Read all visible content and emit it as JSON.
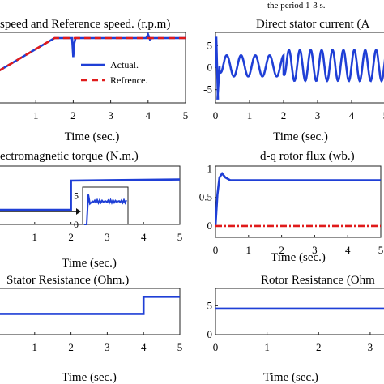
{
  "figure": {
    "top_caption": "the period 1-3 s."
  },
  "chart_data": [
    {
      "id": "speed",
      "type": "line",
      "title": "speed and Reference speed. (r.p.m)",
      "xlabel": "Time (sec.)",
      "xlim": [
        0,
        5
      ],
      "ylim": [
        0,
        1
      ],
      "xticks": [
        "1",
        "2",
        "3",
        "4",
        "5"
      ],
      "yticks": [],
      "legend": {
        "placement": "inside-right",
        "entries": [
          "Actual.",
          "Refrence."
        ]
      },
      "series": [
        {
          "name": "Actual.",
          "color": "#1f3fd6",
          "style": "solid",
          "x": [
            0,
            1.5,
            1.97,
            2.0,
            2.03,
            2.06,
            3.95,
            4.0,
            4.05,
            4.1,
            5
          ],
          "y": [
            0.45,
            0.92,
            0.92,
            0.65,
            0.85,
            0.92,
            0.92,
            0.97,
            0.9,
            0.92,
            0.92
          ]
        },
        {
          "name": "Refrence.",
          "color": "#e01b1b",
          "style": "dashed",
          "x": [
            0,
            1.5,
            5
          ],
          "y": [
            0.45,
            0.92,
            0.92
          ]
        }
      ]
    },
    {
      "id": "current",
      "type": "line",
      "title": "Direct stator current (A",
      "xlabel": "Time (sec.)",
      "xlim": [
        0,
        5
      ],
      "ylim": [
        -8,
        8
      ],
      "xticks": [
        "0",
        "1",
        "2",
        "3",
        "4",
        "5"
      ],
      "yticks": [
        "5",
        "0",
        "-5"
      ],
      "series": [
        {
          "name": "",
          "color": "#1f3fd6",
          "style": "solid",
          "segments": [
            {
              "t0": 0.12,
              "t1": 2.0,
              "amplitude": 2.4,
              "period": 0.42,
              "offset": 0.4
            },
            {
              "t0": 2.0,
              "t1": 5.0,
              "amplitude": 3.5,
              "period": 0.32,
              "offset": 0.5
            }
          ],
          "startup_peak": [
            7,
            -7
          ]
        }
      ]
    },
    {
      "id": "torque",
      "type": "line",
      "title": "ectromagnetic torque (N.m.)",
      "xlabel": "Time (sec.)",
      "xlim": [
        0,
        5
      ],
      "ylim": [
        0,
        1
      ],
      "xticks": [
        "1",
        "2",
        "3",
        "4",
        "5"
      ],
      "yticks": [],
      "series": [
        {
          "name": "",
          "color": "#1f3fd6",
          "style": "solid",
          "x": [
            0,
            2.0,
            2.0,
            5
          ],
          "y": [
            0.25,
            0.25,
            0.75,
            0.77
          ]
        }
      ],
      "inset": {
        "yticks": [
          "5",
          "0"
        ]
      }
    },
    {
      "id": "flux",
      "type": "line",
      "title": "d-q rotor flux (wb.)",
      "xlabel": "Time (sec.)",
      "xlim": [
        0,
        5
      ],
      "ylim": [
        -0.2,
        1.05
      ],
      "xticks": [
        "0",
        "1",
        "2",
        "3",
        "4",
        "5"
      ],
      "yticks": [
        "1",
        "0.5",
        "0"
      ],
      "series": [
        {
          "name": "",
          "color": "#1f3fd6",
          "style": "solid",
          "x": [
            0,
            0.06,
            0.12,
            0.2,
            0.3,
            0.45,
            0.7,
            5
          ],
          "y": [
            0,
            0.55,
            0.85,
            0.92,
            0.85,
            0.8,
            0.8,
            0.8
          ]
        },
        {
          "name": "",
          "color": "#e01b1b",
          "style": "dashdot",
          "x": [
            0,
            5
          ],
          "y": [
            0,
            0
          ]
        }
      ]
    },
    {
      "id": "rs",
      "type": "line",
      "title": "Stator Resistance (Ohm.)",
      "xlabel": "Time (sec.)",
      "xlim": [
        0,
        5
      ],
      "ylim": [
        0,
        1
      ],
      "xticks": [
        "1",
        "2",
        "3",
        "4",
        "5"
      ],
      "yticks": [],
      "series": [
        {
          "name": "",
          "color": "#1f3fd6",
          "style": "solid",
          "x": [
            0,
            4.0,
            4.0,
            5
          ],
          "y": [
            0.45,
            0.45,
            0.82,
            0.82
          ]
        }
      ]
    },
    {
      "id": "rr",
      "type": "line",
      "title": "Rotor Resistance (Ohm",
      "xlabel": "Time (sec.)",
      "xlim": [
        0,
        3.3
      ],
      "ylim": [
        0,
        8
      ],
      "xticks": [
        "0",
        "1",
        "2",
        "3"
      ],
      "yticks": [
        "5",
        "0"
      ],
      "series": [
        {
          "name": "",
          "color": "#1f3fd6",
          "style": "solid",
          "x": [
            0,
            3.3
          ],
          "y": [
            4.5,
            4.5
          ]
        }
      ]
    }
  ]
}
